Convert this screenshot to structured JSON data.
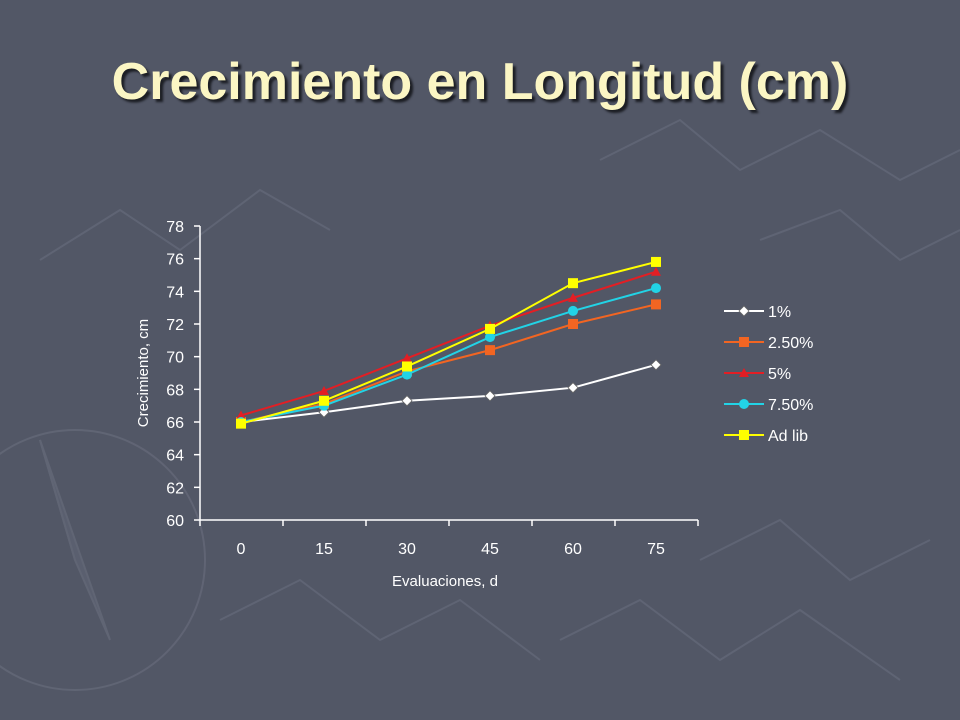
{
  "slide": {
    "title": "Crecimiento en Longitud (cm)"
  },
  "chart_data": {
    "type": "line",
    "title": "",
    "xlabel": "Evaluaciones, d",
    "ylabel": "Crecimiento, cm",
    "categories": [
      "0",
      "15",
      "30",
      "45",
      "60",
      "75"
    ],
    "ylim": [
      60,
      78
    ],
    "ytick_step": 2,
    "grid": false,
    "legend_position": "right",
    "series": [
      {
        "name": "1%",
        "color": "#ffffff",
        "marker": "diamond",
        "values": [
          66.0,
          66.6,
          67.3,
          67.6,
          68.1,
          69.5
        ]
      },
      {
        "name": "2.50%",
        "color": "#f26522",
        "marker": "square",
        "values": [
          66.0,
          67.1,
          69.1,
          70.4,
          72.0,
          73.2
        ]
      },
      {
        "name": "5%",
        "color": "#e31e24",
        "marker": "triangle",
        "values": [
          66.4,
          67.9,
          69.9,
          71.9,
          73.6,
          75.2
        ]
      },
      {
        "name": "7.50%",
        "color": "#22d3e6",
        "marker": "circle",
        "values": [
          66.0,
          67.0,
          68.9,
          71.2,
          72.8,
          74.2
        ]
      },
      {
        "name": "Ad lib",
        "color": "#ffff00",
        "marker": "square",
        "values": [
          65.9,
          67.3,
          69.4,
          71.7,
          74.5,
          75.8
        ]
      }
    ]
  }
}
